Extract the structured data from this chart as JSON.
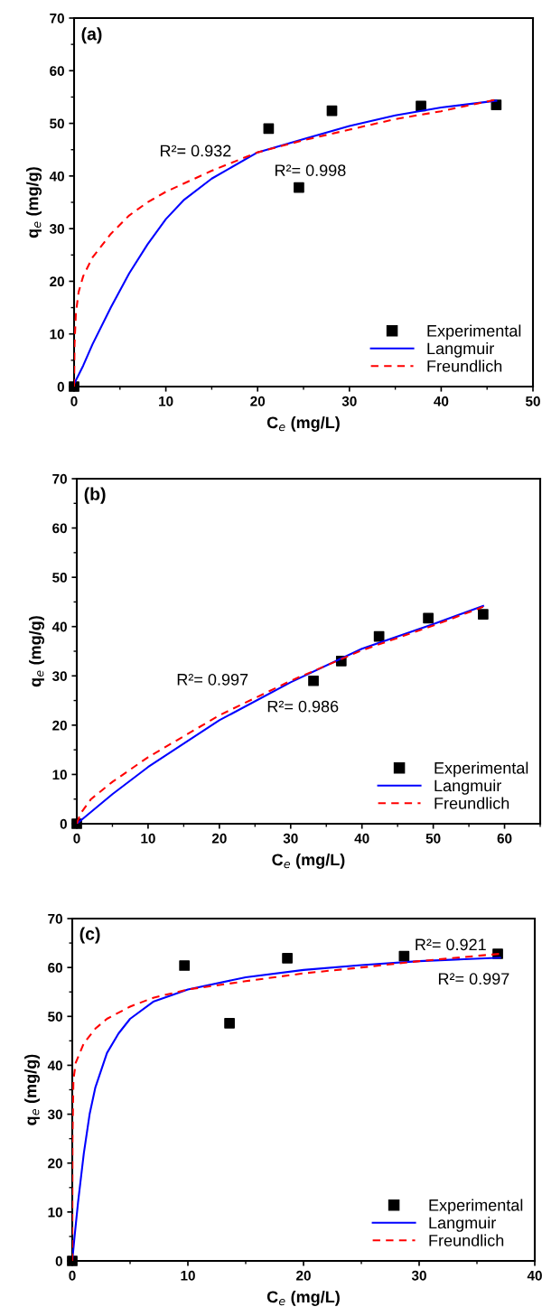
{
  "chart_data": [
    {
      "type": "line",
      "title": "(a)",
      "xlabel": "C$_{e}$ (mg/L)",
      "ylabel": "q$_{e}$ (mg/g)",
      "xlim": [
        0,
        50
      ],
      "xticks": [
        0,
        10,
        20,
        30,
        40,
        50
      ],
      "ylim": [
        0,
        70
      ],
      "yticks": [
        0,
        10,
        20,
        30,
        40,
        50,
        60,
        70
      ],
      "legend": "bottom right",
      "grid": false,
      "annotations": [
        "R²= 0.932",
        "R²= 0.998"
      ],
      "series": [
        {
          "name": "Experimental",
          "type": "scatter",
          "marker": "square",
          "color": "#000000",
          "x": [
            0,
            21.2,
            24.5,
            28.1,
            37.8,
            46
          ],
          "values": [
            0,
            49,
            37.8,
            52.4,
            53.3,
            53.5
          ]
        },
        {
          "name": "Langmuir",
          "marker": "none",
          "line_style": "solid",
          "color": "#0000ff",
          "x": [
            0,
            1,
            2,
            4,
            6,
            8,
            10,
            12,
            15,
            20,
            25,
            30,
            35,
            40,
            46
          ],
          "values": [
            0.5,
            4,
            8,
            15,
            21.5,
            27,
            31.8,
            35.5,
            39.5,
            44.5,
            47,
            49.5,
            51.5,
            53,
            54.3
          ]
        },
        {
          "name": "Freundlich",
          "marker": "none",
          "line_style": "dashed",
          "color": "#ff0000",
          "x": [
            0,
            0.05,
            0.2,
            0.5,
            1,
            2,
            4,
            6,
            8,
            10,
            15,
            20,
            25,
            30,
            35,
            40,
            46
          ],
          "values": [
            0,
            8,
            14,
            18,
            21,
            24.5,
            29,
            32.5,
            35,
            37,
            41,
            44.5,
            46.8,
            48.8,
            50.8,
            52.3,
            54.5
          ]
        }
      ]
    },
    {
      "type": "line",
      "title": "(b)",
      "xlabel": "C$_{e}$ (mg/L)",
      "ylabel": "q$_{e}$ (mg/g)",
      "xlim": [
        0,
        65
      ],
      "xticks": [
        0,
        10,
        20,
        30,
        40,
        50,
        60
      ],
      "ylim": [
        0,
        70
      ],
      "yticks": [
        0,
        10,
        20,
        30,
        40,
        50,
        60,
        70
      ],
      "legend": "bottom right",
      "grid": false,
      "annotations": [
        "R²= 0.997",
        "R²= 0.986"
      ],
      "series": [
        {
          "name": "Experimental",
          "type": "scatter",
          "marker": "square",
          "color": "#000000",
          "x": [
            0,
            33.2,
            37.1,
            42.4,
            49.3,
            57
          ],
          "values": [
            0,
            29,
            33,
            38,
            41.7,
            42.5
          ]
        },
        {
          "name": "Langmuir",
          "marker": "none",
          "line_style": "solid",
          "color": "#0000ff",
          "x": [
            0,
            5,
            10,
            20,
            30,
            40,
            50,
            57
          ],
          "values": [
            0,
            6,
            11.5,
            21,
            28.7,
            35.5,
            40.5,
            44.2
          ]
        },
        {
          "name": "Freundlich",
          "marker": "none",
          "line_style": "dashed",
          "color": "#ff0000",
          "x": [
            0,
            0.5,
            2,
            5,
            10,
            20,
            30,
            40,
            50,
            57
          ],
          "values": [
            0,
            2,
            5,
            8.5,
            13.5,
            22,
            29,
            35.2,
            40.2,
            44
          ]
        }
      ]
    },
    {
      "type": "line",
      "title": "(c)",
      "xlabel": "C$_{e}$ (mg/L)",
      "ylabel": "q$_{e}$ (mg/g)",
      "xlim": [
        0,
        40
      ],
      "xticks": [
        0,
        10,
        20,
        30,
        40
      ],
      "ylim": [
        0,
        70
      ],
      "yticks": [
        0,
        10,
        20,
        30,
        40,
        50,
        60,
        70
      ],
      "legend": "bottom right",
      "grid": false,
      "annotations": [
        "R²= 0.921",
        "R²= 0.997"
      ],
      "series": [
        {
          "name": "Experimental",
          "type": "scatter",
          "marker": "square",
          "color": "#000000",
          "x": [
            0,
            9.7,
            13.6,
            18.6,
            28.7,
            36.8
          ],
          "values": [
            0,
            60.4,
            48.6,
            61.9,
            62.3,
            62.8
          ]
        },
        {
          "name": "Langmuir",
          "marker": "none",
          "line_style": "solid",
          "color": "#0000ff",
          "x": [
            0,
            0.2,
            0.5,
            1,
            1.5,
            2,
            3,
            4,
            5,
            7,
            10,
            15,
            20,
            25,
            30,
            37
          ],
          "values": [
            0,
            5,
            12,
            22,
            30,
            35.5,
            42.5,
            46.5,
            49.5,
            53,
            55.5,
            58,
            59.5,
            60.5,
            61.3,
            62
          ]
        },
        {
          "name": "Freundlich",
          "marker": "none",
          "line_style": "dashed",
          "color": "#ff0000",
          "x": [
            0,
            0.02,
            0.1,
            0.3,
            1,
            2,
            3,
            5,
            7,
            10,
            15,
            20,
            25,
            30,
            37
          ],
          "values": [
            0,
            25,
            37,
            40.5,
            44.5,
            47.5,
            49.5,
            52,
            53.8,
            55.5,
            57.2,
            58.8,
            60,
            61.3,
            62.8
          ]
        }
      ]
    }
  ]
}
